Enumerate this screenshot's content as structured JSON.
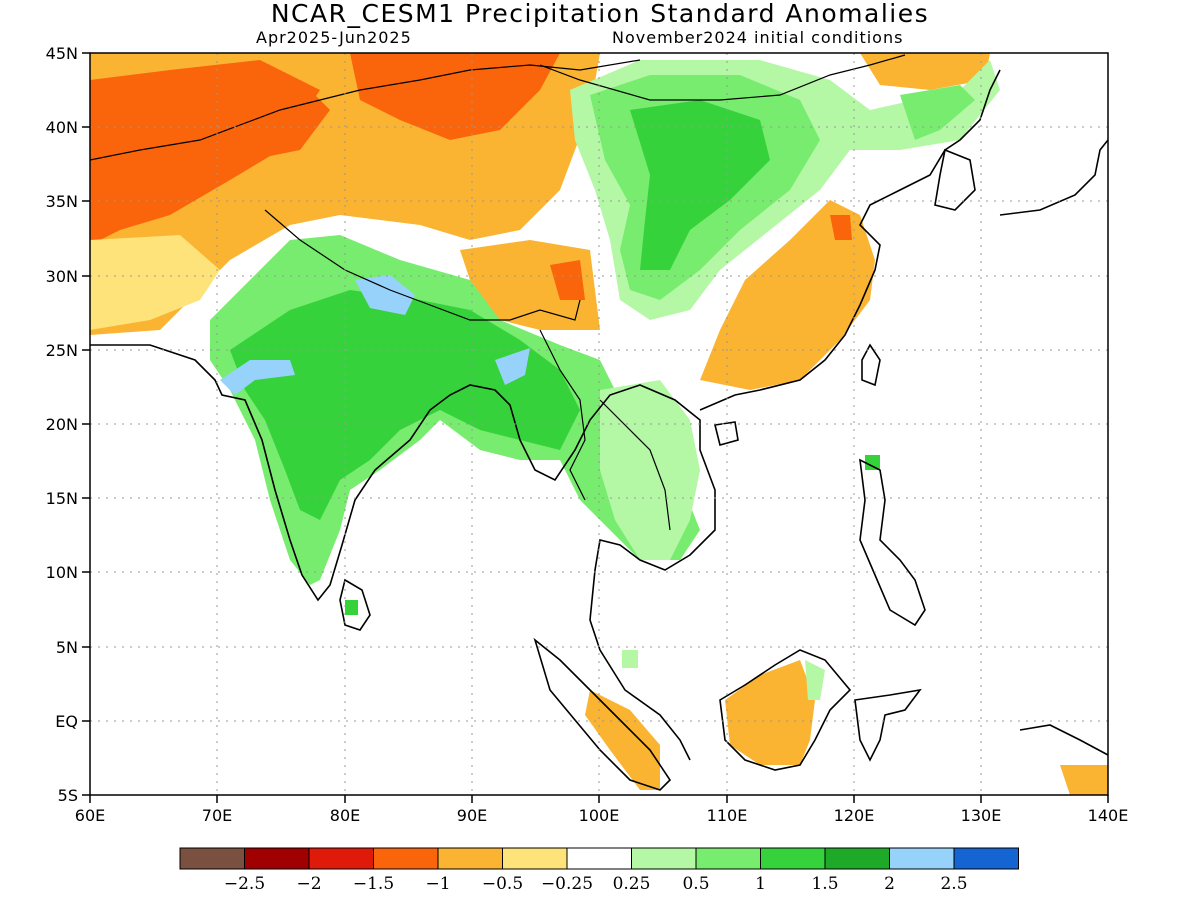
{
  "header": {
    "title": "NCAR_CESM1 Precipitation Standard Anomalies",
    "period": "Apr2025-Jun2025",
    "init": "November2024 initial conditions"
  },
  "map": {
    "lon_range": [
      60,
      140
    ],
    "lat_range": [
      -5,
      45
    ],
    "grid": "dotted",
    "x_tick_labels": [
      "60E",
      "70E",
      "80E",
      "90E",
      "100E",
      "110E",
      "120E",
      "130E",
      "140E"
    ],
    "y_tick_labels": [
      "45N",
      "40N",
      "35N",
      "30N",
      "25N",
      "20N",
      "15N",
      "10N",
      "5N",
      "EQ",
      "5S"
    ]
  },
  "colorbar": {
    "colors": [
      "#7a5040",
      "#a00000",
      "#e01a0a",
      "#fa640a",
      "#fab432",
      "#fde37a",
      "#ffffff",
      "#b4f8a6",
      "#78ec6e",
      "#36d23c",
      "#1eaa28",
      "#96d2fa",
      "#1464d2"
    ],
    "labels": [
      "-2.5",
      "-2",
      "-1.5",
      "-1",
      "-0.5",
      "-0.25",
      "0.25",
      "0.5",
      "1",
      "1.5",
      "2",
      "2.5"
    ]
  },
  "regions": [
    {
      "name": "north-india-wet",
      "lon": [
        71,
        97
      ],
      "lat": [
        14,
        32
      ],
      "category": "0.5"
    },
    {
      "name": "central-india-wet",
      "lon": [
        74,
        91
      ],
      "lat": [
        15,
        27
      ],
      "category": "1"
    },
    {
      "name": "nepal-wet",
      "lon": [
        81,
        86
      ],
      "lat": [
        27,
        30
      ],
      "category": "2"
    },
    {
      "name": "gujarat-wet",
      "lon": [
        71,
        76
      ],
      "lat": [
        22,
        25
      ],
      "category": "2"
    },
    {
      "name": "assam-wet",
      "lon": [
        91,
        96
      ],
      "lat": [
        23,
        26
      ],
      "category": "2"
    },
    {
      "name": "southeast-asia-wet",
      "lon": [
        97,
        110
      ],
      "lat": [
        10,
        22
      ],
      "category": "0.5"
    },
    {
      "name": "northwest-dry",
      "lon": [
        60,
        82
      ],
      "lat": [
        32,
        45
      ],
      "category": "-1"
    },
    {
      "name": "central-asia-dry",
      "lon": [
        80,
        102
      ],
      "lat": [
        37,
        45
      ],
      "category": "-1"
    },
    {
      "name": "china-north-wet",
      "lon": [
        98,
        122
      ],
      "lat": [
        30,
        45
      ],
      "category": "0.5"
    },
    {
      "name": "southeast-china-dry",
      "lon": [
        108,
        122
      ],
      "lat": [
        21,
        34
      ],
      "category": "-0.5"
    },
    {
      "name": "borneo-dry",
      "lon": [
        110,
        118
      ],
      "lat": [
        -3,
        3
      ],
      "category": "-0.5"
    }
  ]
}
